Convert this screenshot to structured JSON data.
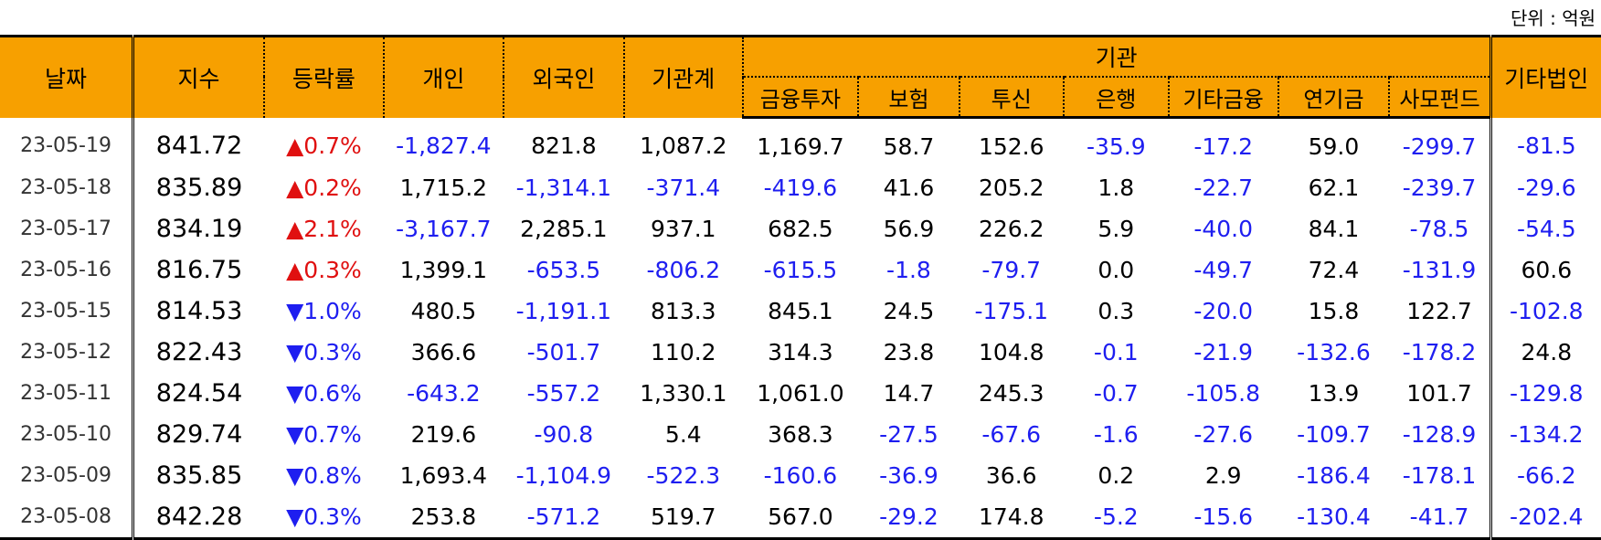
{
  "unit_label": "단위 : 억원",
  "headers": {
    "date": "날짜",
    "index": "지수",
    "change": "등락률",
    "individual": "개인",
    "foreign": "외국인",
    "institution_total": "기관계",
    "institution": "기관",
    "sub": [
      "금융투자",
      "보험",
      "투신",
      "은행",
      "기타금융",
      "연기금",
      "사모펀드"
    ],
    "other_corp": "기타법인"
  },
  "rows": [
    {
      "date": "23-05-19",
      "index": "841.72",
      "dir": "up",
      "change": "▲0.7%",
      "cells": [
        "-1,827.4",
        "821.8",
        "1,087.2",
        "1,169.7",
        "58.7",
        "152.6",
        "-35.9",
        "-17.2",
        "59.0",
        "-299.7",
        "-81.5"
      ]
    },
    {
      "date": "23-05-18",
      "index": "835.89",
      "dir": "up",
      "change": "▲0.2%",
      "cells": [
        "1,715.2",
        "-1,314.1",
        "-371.4",
        "-419.6",
        "41.6",
        "205.2",
        "1.8",
        "-22.7",
        "62.1",
        "-239.7",
        "-29.6"
      ]
    },
    {
      "date": "23-05-17",
      "index": "834.19",
      "dir": "up",
      "change": "▲2.1%",
      "cells": [
        "-3,167.7",
        "2,285.1",
        "937.1",
        "682.5",
        "56.9",
        "226.2",
        "5.9",
        "-40.0",
        "84.1",
        "-78.5",
        "-54.5"
      ]
    },
    {
      "date": "23-05-16",
      "index": "816.75",
      "dir": "up",
      "change": "▲0.3%",
      "cells": [
        "1,399.1",
        "-653.5",
        "-806.2",
        "-615.5",
        "-1.8",
        "-79.7",
        "0.0",
        "-49.7",
        "72.4",
        "-131.9",
        "60.6"
      ]
    },
    {
      "date": "23-05-15",
      "index": "814.53",
      "dir": "down",
      "change": "▼1.0%",
      "cells": [
        "480.5",
        "-1,191.1",
        "813.3",
        "845.1",
        "24.5",
        "-175.1",
        "0.3",
        "-20.0",
        "15.8",
        "122.7",
        "-102.8"
      ]
    },
    {
      "date": "23-05-12",
      "index": "822.43",
      "dir": "down",
      "change": "▼0.3%",
      "cells": [
        "366.6",
        "-501.7",
        "110.2",
        "314.3",
        "23.8",
        "104.8",
        "-0.1",
        "-21.9",
        "-132.6",
        "-178.2",
        "24.8"
      ]
    },
    {
      "date": "23-05-11",
      "index": "824.54",
      "dir": "down",
      "change": "▼0.6%",
      "cells": [
        "-643.2",
        "-557.2",
        "1,330.1",
        "1,061.0",
        "14.7",
        "245.3",
        "-0.7",
        "-105.8",
        "13.9",
        "101.7",
        "-129.8"
      ]
    },
    {
      "date": "23-05-10",
      "index": "829.74",
      "dir": "down",
      "change": "▼0.7%",
      "cells": [
        "219.6",
        "-90.8",
        "5.4",
        "368.3",
        "-27.5",
        "-67.6",
        "-1.6",
        "-27.6",
        "-109.7",
        "-128.9",
        "-134.2"
      ]
    },
    {
      "date": "23-05-09",
      "index": "835.85",
      "dir": "down",
      "change": "▼0.8%",
      "cells": [
        "1,693.4",
        "-1,104.9",
        "-522.3",
        "-160.6",
        "-36.9",
        "36.6",
        "0.2",
        "2.9",
        "-186.4",
        "-178.1",
        "-66.2"
      ]
    },
    {
      "date": "23-05-08",
      "index": "842.28",
      "dir": "down",
      "change": "▼0.3%",
      "cells": [
        "253.8",
        "-571.2",
        "519.7",
        "567.0",
        "-29.2",
        "174.8",
        "-5.2",
        "-15.6",
        "-130.4",
        "-41.7",
        "-202.4"
      ]
    }
  ],
  "colors": {
    "header_bg": "#f7a000",
    "negative": "#1e1ef0",
    "up": "#e01010",
    "down": "#1e1ef0"
  }
}
